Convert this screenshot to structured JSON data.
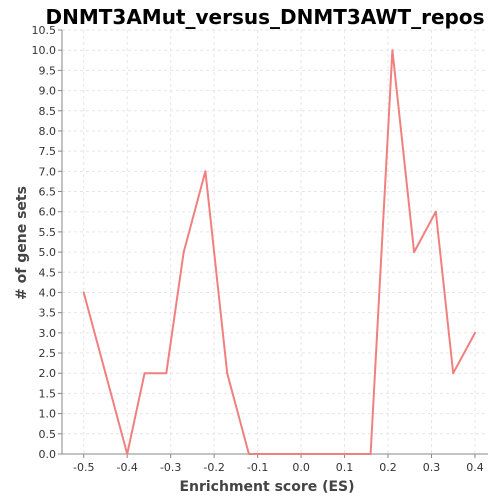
{
  "chart_data": {
    "type": "line",
    "title": "DNMT3AMut_versus_DNMT3AWT_repos",
    "xlabel": "Enrichment score (ES)",
    "ylabel": "# of gene sets",
    "xlim": [
      -0.55,
      0.43
    ],
    "ylim": [
      0.0,
      10.5
    ],
    "x_ticks": [
      "-0.5",
      "-0.4",
      "-0.3",
      "-0.2",
      "-0.1",
      "0.0",
      "0.1",
      "0.2",
      "0.3",
      "0.4"
    ],
    "y_ticks": [
      "0.0",
      "0.5",
      "1.0",
      "1.5",
      "2.0",
      "2.5",
      "3.0",
      "3.5",
      "4.0",
      "4.5",
      "5.0",
      "5.5",
      "6.0",
      "6.5",
      "7.0",
      "7.5",
      "8.0",
      "8.5",
      "9.0",
      "9.5",
      "10.0",
      "10.5"
    ],
    "grid": true,
    "color": "#f08080",
    "series": [
      {
        "x": [
          -0.5,
          -0.45,
          -0.4,
          -0.36,
          -0.31,
          -0.27,
          -0.22,
          -0.17,
          -0.12,
          -0.08,
          -0.03,
          0.02,
          0.07,
          0.11,
          0.16,
          0.21,
          0.26,
          0.31,
          0.35,
          0.4
        ],
        "y": [
          4,
          2,
          0,
          2,
          2,
          5,
          7,
          2,
          0,
          0,
          0,
          0,
          0,
          0,
          0,
          10,
          5,
          6,
          2,
          3
        ]
      }
    ]
  }
}
